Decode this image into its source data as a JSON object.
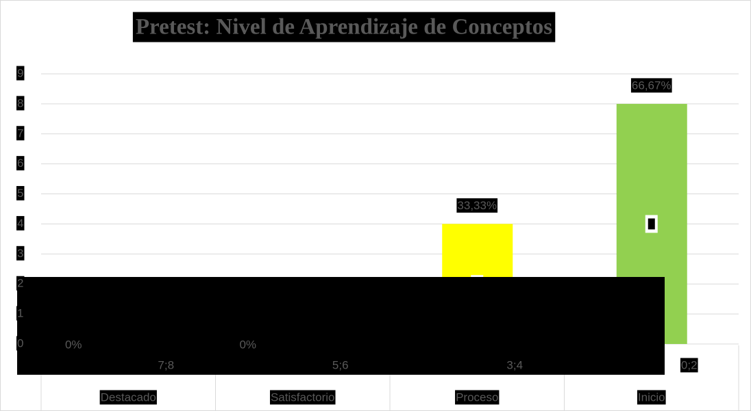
{
  "chart_data": {
    "type": "bar",
    "title": "Pretest: Nivel de Aprendizaje de Conceptos",
    "categories": [
      "Destacado",
      "Satisfactorio",
      "Proceso",
      "Inicio"
    ],
    "ranges": [
      "7;8",
      "5;6",
      "3;4",
      "0;2"
    ],
    "values": [
      0,
      0,
      4,
      8
    ],
    "value_labels": [
      "0%",
      "0%",
      "33,33%",
      "66,67%"
    ],
    "colors": [
      "#ffff00",
      "#ffff00",
      "#ffff00",
      "#92d050"
    ],
    "ylim": [
      0,
      9
    ],
    "yticks": [
      0,
      1,
      2,
      3,
      4,
      5,
      6,
      7,
      8,
      9
    ],
    "grid": true
  }
}
